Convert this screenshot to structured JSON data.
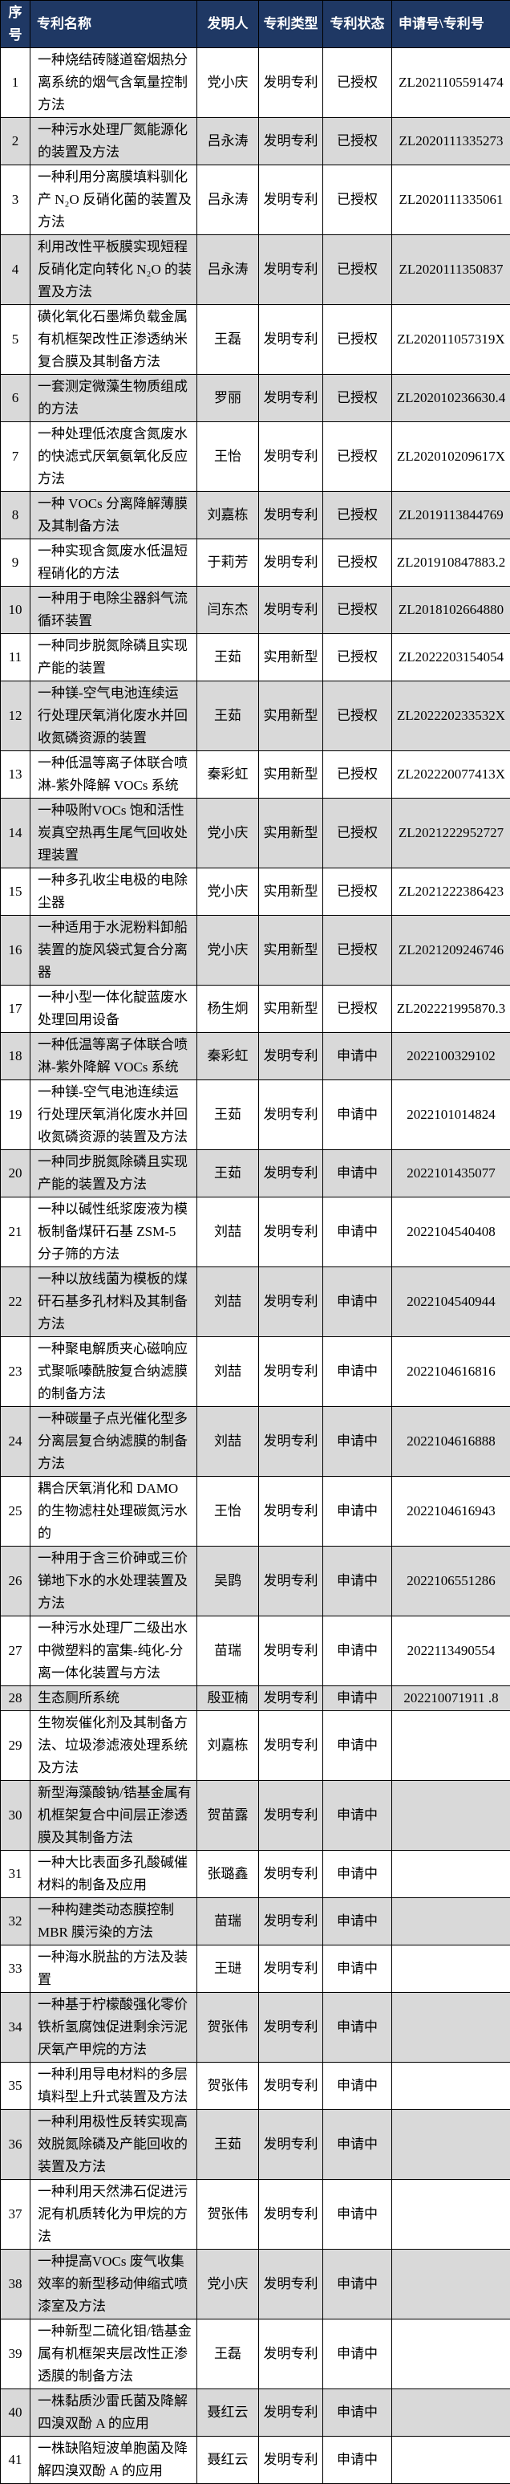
{
  "table": {
    "headers": [
      "序号",
      "专利名称",
      "发明人",
      "专利类型",
      "专利状态",
      "申请号\\专利号"
    ],
    "rows": [
      {
        "no": "1",
        "title": "一种烧结砖隧道窑烟热分离系统的烟气含氧量控制方法",
        "inventor": "党小庆",
        "type": "发明专利",
        "status": "已授权",
        "number": "ZL2021105591474"
      },
      {
        "no": "2",
        "title": "一种污水处理厂氮能源化的装置及方法",
        "inventor": "吕永涛",
        "type": "发明专利",
        "status": "已授权",
        "number": "ZL2020111335273"
      },
      {
        "no": "3",
        "title": "一种利用分离膜填料驯化产 N₂O 反硝化菌的装置及方法",
        "inventor": "吕永涛",
        "type": "发明专利",
        "status": "已授权",
        "number": "ZL2020111335061"
      },
      {
        "no": "4",
        "title": "利用改性平板膜实现短程反硝化定向转化 N₂O 的装置及方法",
        "inventor": "吕永涛",
        "type": "发明专利",
        "status": "已授权",
        "number": "ZL2020111350837"
      },
      {
        "no": "5",
        "title": "磺化氧化石墨烯负载金属有机框架改性正渗透纳米复合膜及其制备方法",
        "inventor": "王磊",
        "type": "发明专利",
        "status": "已授权",
        "number": "ZL202011057319X"
      },
      {
        "no": "6",
        "title": "一套测定微藻生物质组成的方法",
        "inventor": "罗丽",
        "type": "发明专利",
        "status": "已授权",
        "number": "ZL202010236630.4"
      },
      {
        "no": "7",
        "title": "一种处理低浓度含氮废水的快滤式厌氧氨氧化反应方法",
        "inventor": "王怡",
        "type": "发明专利",
        "status": "已授权",
        "number": "ZL202010209617X"
      },
      {
        "no": "8",
        "title": "一种 VOCs 分离降解薄膜及其制备方法",
        "inventor": "刘嘉栋",
        "type": "发明专利",
        "status": "已授权",
        "number": "ZL2019113844769"
      },
      {
        "no": "9",
        "title": "一种实现含氮废水低温短程硝化的方法",
        "inventor": "于莉芳",
        "type": "发明专利",
        "status": "已授权",
        "number": "ZL201910847883.2"
      },
      {
        "no": "10",
        "title": "一种用于电除尘器斜气流循环装置",
        "inventor": "闫东杰",
        "type": "发明专利",
        "status": "已授权",
        "number": "ZL2018102664880"
      },
      {
        "no": "11",
        "title": "一种同步脱氮除磷且实现产能的装置",
        "inventor": "王茹",
        "type": "实用新型",
        "status": "已授权",
        "number": "ZL2022203154054"
      },
      {
        "no": "12",
        "title": "一种镁-空气电池连续运行处理厌氧消化废水并回收氮磷资源的装置",
        "inventor": "王茹",
        "type": "实用新型",
        "status": "已授权",
        "number": "ZL202220233532X"
      },
      {
        "no": "13",
        "title": "一种低温等离子体联合喷淋-紫外降解 VOCs 系统",
        "inventor": "秦彩虹",
        "type": "实用新型",
        "status": "已授权",
        "number": "ZL202220077413X"
      },
      {
        "no": "14",
        "title": "一种吸附VOCs 饱和活性炭真空热再生尾气回收处理装置",
        "inventor": "党小庆",
        "type": "实用新型",
        "status": "已授权",
        "number": "ZL2021222952727"
      },
      {
        "no": "15",
        "title": "一种多孔收尘电极的电除尘器",
        "inventor": "党小庆",
        "type": "实用新型",
        "status": "已授权",
        "number": "ZL2021222386423"
      },
      {
        "no": "16",
        "title": "一种适用于水泥粉料卸船装置的旋风袋式复合分离器",
        "inventor": "党小庆",
        "type": "实用新型",
        "status": "已授权",
        "number": "ZL2021209246746"
      },
      {
        "no": "17",
        "title": "一种小型一体化靛蓝废水处理回用设备",
        "inventor": "杨生炯",
        "type": "实用新型",
        "status": "已授权",
        "number": "ZL202221995870.3"
      },
      {
        "no": "18",
        "title": "一种低温等离子体联合喷淋-紫外降解 VOCs 系统",
        "inventor": "秦彩虹",
        "type": "发明专利",
        "status": "申请中",
        "number": "2022100329102"
      },
      {
        "no": "19",
        "title": "一种镁-空气电池连续运行处理厌氧消化废水并回收氮磷资源的装置及方法",
        "inventor": "王茹",
        "type": "发明专利",
        "status": "申请中",
        "number": "2022101014824"
      },
      {
        "no": "20",
        "title": "一种同步脱氮除磷且实现产能的装置及方法",
        "inventor": "王茹",
        "type": "发明专利",
        "status": "申请中",
        "number": "2022101435077"
      },
      {
        "no": "21",
        "title": "一种以碱性纸浆废液为模板制备煤矸石基 ZSM-5 分子筛的方法",
        "inventor": "刘喆",
        "type": "发明专利",
        "status": "申请中",
        "number": "2022104540408"
      },
      {
        "no": "22",
        "title": "一种以放线菌为模板的煤矸石基多孔材料及其制备方法",
        "inventor": "刘喆",
        "type": "发明专利",
        "status": "申请中",
        "number": "2022104540944"
      },
      {
        "no": "23",
        "title": "一种聚电解质夹心磁响应式聚哌嗪酰胺复合纳滤膜的制备方法",
        "inventor": "刘喆",
        "type": "发明专利",
        "status": "申请中",
        "number": "2022104616816"
      },
      {
        "no": "24",
        "title": "一种碳量子点光催化型多分离层复合纳滤膜的制备方法",
        "inventor": "刘喆",
        "type": "发明专利",
        "status": "申请中",
        "number": "2022104616888"
      },
      {
        "no": "25",
        "title": "耦合厌氧消化和 DAMO 的生物滤柱处理碳氮污水的",
        "inventor": "王怡",
        "type": "发明专利",
        "status": "申请中",
        "number": "2022104616943"
      },
      {
        "no": "26",
        "title": "一种用于含三价砷或三价锑地下水的水处理装置及方法",
        "inventor": "吴鹍",
        "type": "发明专利",
        "status": "申请中",
        "number": "2022106551286"
      },
      {
        "no": "27",
        "title": "一种污水处理厂二级出水中微塑料的富集-纯化-分离一体化装置与方法",
        "inventor": "苗瑞",
        "type": "发明专利",
        "status": "申请中",
        "number": "2022113490554"
      },
      {
        "no": "28",
        "title": "生态厕所系统",
        "inventor": "殷亚楠",
        "type": "发明专利",
        "status": "申请中",
        "number": "202210071911 .8"
      },
      {
        "no": "29",
        "title": "生物炭催化剂及其制备方法、垃圾渗滤液处理系统及方法",
        "inventor": "刘嘉栋",
        "type": "发明专利",
        "status": "申请中",
        "number": ""
      },
      {
        "no": "30",
        "title": "新型海藻酸钠/锆基金属有机框架复合中间层正渗透膜及其制备方法",
        "inventor": "贺苗露",
        "type": "发明专利",
        "status": "申请中",
        "number": ""
      },
      {
        "no": "31",
        "title": "一种大比表面多孔酸碱催材料的制备及应用",
        "inventor": "张璐鑫",
        "type": "发明专利",
        "status": "申请中",
        "number": ""
      },
      {
        "no": "32",
        "title": "一种构建类动态膜控制 MBR 膜污染的方法",
        "inventor": "苗瑞",
        "type": "发明专利",
        "status": "申请中",
        "number": ""
      },
      {
        "no": "33",
        "title": "一种海水脱盐的方法及装置",
        "inventor": "王琎",
        "type": "发明专利",
        "status": "申请中",
        "number": ""
      },
      {
        "no": "34",
        "title": "一种基于柠檬酸强化零价铁析氢腐蚀促进剩余污泥厌氧产甲烷的方法",
        "inventor": "贺张伟",
        "type": "发明专利",
        "status": "申请中",
        "number": ""
      },
      {
        "no": "35",
        "title": "一种利用导电材料的多层填料型上升式装置及方法",
        "inventor": "贺张伟",
        "type": "发明专利",
        "status": "申请中",
        "number": ""
      },
      {
        "no": "36",
        "title": "一种利用极性反转实现高效脱氮除磷及产能回收的装置及方法",
        "inventor": "王茹",
        "type": "发明专利",
        "status": "申请中",
        "number": ""
      },
      {
        "no": "37",
        "title": "一种利用天然沸石促进污泥有机质转化为甲烷的方法",
        "inventor": "贺张伟",
        "type": "发明专利",
        "status": "申请中",
        "number": ""
      },
      {
        "no": "38",
        "title": "一种提高VOCs 废气收集效率的新型移动伸缩式喷漆室及方法",
        "inventor": "党小庆",
        "type": "发明专利",
        "status": "申请中",
        "number": ""
      },
      {
        "no": "39",
        "title": "一种新型二硫化钼/锆基金属有机框架夹层改性正渗透膜的制备方法",
        "inventor": "王磊",
        "type": "发明专利",
        "status": "申请中",
        "number": ""
      },
      {
        "no": "40",
        "title": "一株黏质沙雷氏菌及降解四溴双酚 A 的应用",
        "inventor": "聂红云",
        "type": "发明专利",
        "status": "申请中",
        "number": ""
      },
      {
        "no": "41",
        "title": "一株缺陷短波单胞菌及降解四溴双酚 A 的应用",
        "inventor": "聂红云",
        "type": "发明专利",
        "status": "申请中",
        "number": ""
      }
    ]
  },
  "colors": {
    "header_bg": "#1f3864",
    "header_text": "#ffffff",
    "row_alt": "#d9d9d9",
    "border": "#000000"
  }
}
